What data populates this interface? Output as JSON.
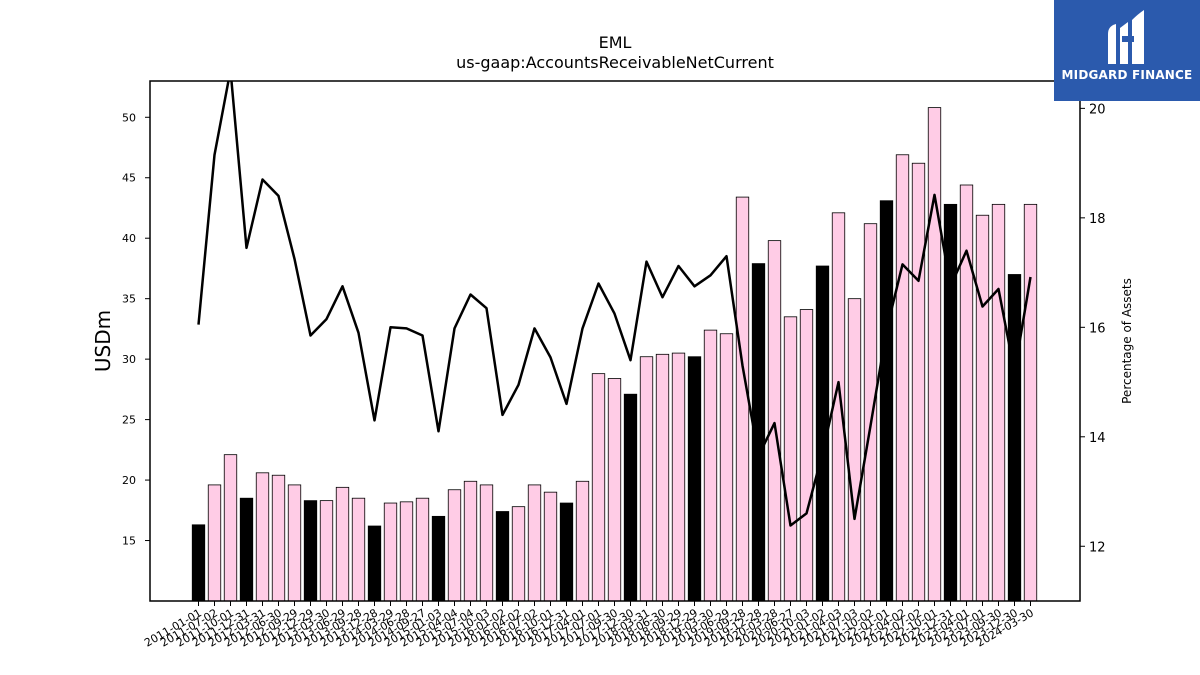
{
  "chart_data": {
    "type": "bar",
    "title": "EML",
    "subtitle": "us-gaap:AccountsReceivableNetCurrent",
    "ylabel": "USDm",
    "y2label": "Percentage of Assets",
    "ylim": [
      10,
      53
    ],
    "y2lim": [
      11.0,
      20.5
    ],
    "yticks": [
      15,
      20,
      25,
      30,
      35,
      40,
      45,
      50
    ],
    "y2ticks": [
      12,
      14,
      16,
      18,
      20
    ],
    "grid": false,
    "categories": [
      "2011-01-01",
      "2011-07-02",
      "2011-10-01",
      "2011-12-31",
      "2012-03-31",
      "2012-06-30",
      "2012-09-29",
      "2012-12-29",
      "2013-03-30",
      "2013-06-29",
      "2013-09-28",
      "2013-12-28",
      "2014-03-29",
      "2014-06-28",
      "2014-09-27",
      "2015-01-03",
      "2015-04-04",
      "2015-07-04",
      "2015-10-03",
      "2016-01-02",
      "2016-04-02",
      "2016-07-02",
      "2016-10-01",
      "2016-12-31",
      "2017-04-01",
      "2017-07-01",
      "2017-09-30",
      "2017-12-30",
      "2018-03-31",
      "2018-06-30",
      "2018-09-29",
      "2018-12-29",
      "2019-03-30",
      "2019-06-29",
      "2019-09-28",
      "2019-12-28",
      "2020-03-28",
      "2020-06-27",
      "2020-10-03",
      "2021-01-02",
      "2021-04-03",
      "2021-07-03",
      "2021-10-02",
      "2022-01-01",
      "2022-04-02",
      "2022-07-02",
      "2022-10-01",
      "2022-12-31",
      "2023-04-01",
      "2023-07-01",
      "2023-09-30",
      "2023-12-30",
      "2024-03-30"
    ],
    "series": [
      {
        "type": "bar",
        "values": [
          16.3,
          19.6,
          22.1,
          18.5,
          20.6,
          20.4,
          19.6,
          18.3,
          18.3,
          19.4,
          18.5,
          16.2,
          18.1,
          18.2,
          18.5,
          17.0,
          19.2,
          19.9,
          19.6,
          17.4,
          17.8,
          19.6,
          19.0,
          18.1,
          19.9,
          28.8,
          28.4,
          27.1,
          30.2,
          30.4,
          30.5,
          30.2,
          32.4,
          32.1,
          43.4,
          37.9,
          39.8,
          33.5,
          34.1,
          37.7,
          42.1,
          35.0,
          41.2,
          43.1,
          46.9,
          46.2,
          50.8,
          42.8,
          44.4,
          41.9,
          42.8,
          37.0,
          42.8
        ],
        "colors": [
          "#000000",
          "#ffcce6",
          "#ffcce6",
          "#000000",
          "#ffcce6",
          "#ffcce6",
          "#ffcce6",
          "#000000",
          "#ffcce6",
          "#ffcce6",
          "#ffcce6",
          "#000000",
          "#ffcce6",
          "#ffcce6",
          "#ffcce6",
          "#000000",
          "#ffcce6",
          "#ffcce6",
          "#ffcce6",
          "#000000",
          "#ffcce6",
          "#ffcce6",
          "#ffcce6",
          "#000000",
          "#ffcce6",
          "#ffcce6",
          "#ffcce6",
          "#000000",
          "#ffcce6",
          "#ffcce6",
          "#ffcce6",
          "#000000",
          "#ffcce6",
          "#ffcce6",
          "#ffcce6",
          "#000000",
          "#ffcce6",
          "#ffcce6",
          "#ffcce6",
          "#000000",
          "#ffcce6",
          "#ffcce6",
          "#ffcce6",
          "#000000",
          "#ffcce6",
          "#ffcce6",
          "#ffcce6",
          "#000000",
          "#ffcce6",
          "#ffcce6",
          "#ffcce6",
          "#000000",
          "#ffcce6"
        ]
      },
      {
        "type": "line",
        "axis": "right",
        "color": "#000000",
        "values": [
          16.05,
          19.15,
          20.7,
          17.45,
          18.7,
          18.4,
          17.25,
          15.85,
          16.15,
          16.75,
          15.9,
          14.3,
          16.0,
          15.98,
          15.85,
          14.1,
          15.98,
          16.6,
          16.35,
          14.4,
          14.95,
          15.98,
          15.45,
          14.6,
          15.98,
          16.8,
          16.25,
          15.4,
          17.2,
          16.55,
          17.12,
          16.75,
          16.95,
          17.3,
          15.3,
          13.65,
          14.25,
          12.38,
          12.6,
          13.7,
          15.0,
          12.5,
          14.2,
          15.95,
          17.15,
          16.85,
          18.42,
          16.75,
          17.4,
          16.38,
          16.7,
          15.18,
          16.92
        ]
      }
    ]
  },
  "logo": {
    "text": "MIDGARD FINANCE",
    "background": "#2b5aad"
  }
}
